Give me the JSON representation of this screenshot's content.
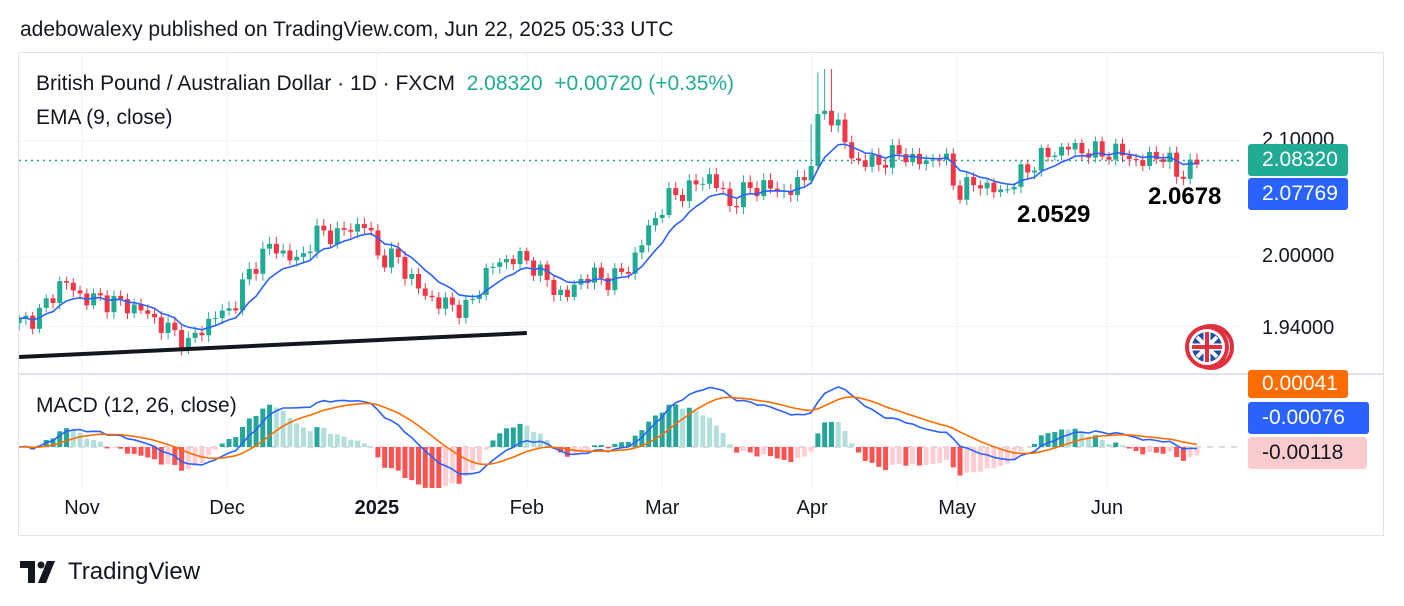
{
  "header": {
    "published": "adebowalexy published on TradingView.com, Jun 22, 2025 05:33 UTC"
  },
  "footer": {
    "brand": "TradingView"
  },
  "colors": {
    "up": "#22ab94",
    "down": "#f23645",
    "ema": "#2962ff",
    "signal": "#ff6d00",
    "macd": "#2962ff"
  },
  "chart_data": {
    "type": "candlestick",
    "title": "British Pound / Australian Dollar · 1D · FXCM",
    "last_price": "2.08320",
    "change": "+0.00720 (+0.35%)",
    "indicator": "EMA (9, close)",
    "ema_value": "2.07769",
    "macd_title": "MACD (12, 26, close)",
    "macd_values": {
      "signal": "0.00041",
      "macd": "-0.00076",
      "histogram": "-0.00118"
    },
    "y_ticks": [
      "2.10000",
      "2.00000",
      "1.94000"
    ],
    "y_tick_values": [
      2.1,
      2.0,
      1.94
    ],
    "x_ticks": [
      {
        "label": "Nov",
        "date": "2024-11-01",
        "bold": false
      },
      {
        "label": "Dec",
        "date": "2024-12-01",
        "bold": false
      },
      {
        "label": "2025",
        "date": "2025-01-01",
        "bold": true
      },
      {
        "label": "Feb",
        "date": "2025-02-01",
        "bold": false
      },
      {
        "label": "Mar",
        "date": "2025-03-01",
        "bold": false
      },
      {
        "label": "Apr",
        "date": "2025-04-01",
        "bold": false
      },
      {
        "label": "May",
        "date": "2025-05-01",
        "bold": false
      },
      {
        "label": "Jun",
        "date": "2025-06-01",
        "bold": false
      }
    ],
    "annotations": [
      {
        "text": "2.0529",
        "date": "2025-05-12",
        "price": 2.0529
      },
      {
        "text": "2.0678",
        "date": "2025-06-17",
        "price": 2.0678
      }
    ],
    "trendline": [
      {
        "date": "2024-10-19",
        "price": 1.9138
      },
      {
        "date": "2025-02-01",
        "price": 1.9345
      }
    ],
    "approx_closes": [
      [
        "2024-10-19",
        1.943
      ],
      [
        "2024-10-23",
        1.95
      ],
      [
        "2024-10-28",
        1.98
      ],
      [
        "2024-11-01",
        1.965
      ],
      [
        "2024-11-07",
        1.962
      ],
      [
        "2024-11-13",
        1.955
      ],
      [
        "2024-11-18",
        1.94
      ],
      [
        "2024-11-23",
        1.925
      ],
      [
        "2024-11-28",
        1.948
      ],
      [
        "2024-12-02",
        1.955
      ],
      [
        "2024-12-06",
        1.99
      ],
      [
        "2024-12-10",
        2.01
      ],
      [
        "2024-12-16",
        1.995
      ],
      [
        "2024-12-19",
        2.02
      ],
      [
        "2024-12-24",
        2.02
      ],
      [
        "2024-12-30",
        2.03
      ],
      [
        "2025-01-01",
        2.0
      ],
      [
        "2025-01-05",
        2.0
      ],
      [
        "2025-01-10",
        1.97
      ],
      [
        "2025-01-14",
        1.96
      ],
      [
        "2025-01-20",
        1.955
      ],
      [
        "2025-01-24",
        1.99
      ],
      [
        "2025-01-29",
        2.0
      ],
      [
        "2025-02-02",
        1.995
      ],
      [
        "2025-02-06",
        1.975
      ],
      [
        "2025-02-09",
        1.965
      ],
      [
        "2025-02-13",
        1.985
      ],
      [
        "2025-02-18",
        1.98
      ],
      [
        "2025-02-22",
        1.99
      ],
      [
        "2025-02-27",
        2.03
      ],
      [
        "2025-03-02",
        2.05
      ],
      [
        "2025-03-07",
        2.06
      ],
      [
        "2025-03-11",
        2.07
      ],
      [
        "2025-03-15",
        2.045
      ],
      [
        "2025-03-19",
        2.06
      ],
      [
        "2025-03-23",
        2.06
      ],
      [
        "2025-03-27",
        2.055
      ],
      [
        "2025-03-31",
        2.07
      ],
      [
        "2025-04-03",
        2.13
      ],
      [
        "2025-04-07",
        2.11
      ],
      [
        "2025-04-09",
        2.085
      ],
      [
        "2025-04-14",
        2.08
      ],
      [
        "2025-04-19",
        2.09
      ],
      [
        "2025-04-24",
        2.08
      ],
      [
        "2025-04-28",
        2.09
      ],
      [
        "2025-05-01",
        2.055
      ],
      [
        "2025-05-05",
        2.065
      ],
      [
        "2025-05-10",
        2.055
      ],
      [
        "2025-05-14",
        2.07
      ],
      [
        "2025-05-18",
        2.085
      ],
      [
        "2025-05-24",
        2.095
      ],
      [
        "2025-05-29",
        2.09
      ],
      [
        "2025-06-04",
        2.09
      ],
      [
        "2025-06-08",
        2.08
      ],
      [
        "2025-06-12",
        2.09
      ],
      [
        "2025-06-16",
        2.07
      ],
      [
        "2025-06-20",
        2.0832
      ]
    ]
  }
}
